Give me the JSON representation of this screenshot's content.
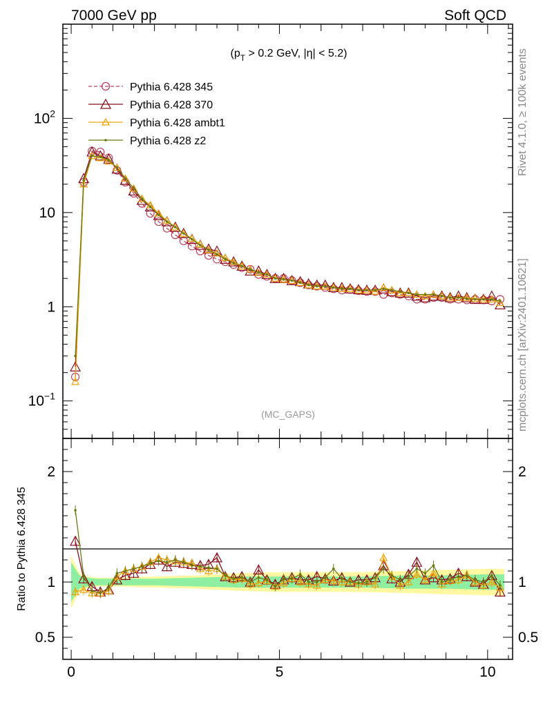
{
  "header": {
    "left": "7000 GeV pp",
    "right": "Soft QCD"
  },
  "side_labels": {
    "rivet": "Rivet 4.1.0, ≥ 100k events",
    "mcplots": "mcplots.cern.ch [arXiv:2401.10621]"
  },
  "colors": {
    "p345": "#c0405a",
    "p370": "#8b0f1e",
    "ambt1": "#f0a30a",
    "z2": "#6b7a10",
    "band_inner": "#8fefa0",
    "band_outer": "#fff8a0"
  },
  "chart_data": [
    {
      "id": "main",
      "type": "line",
      "yscale": "log",
      "title": "(p_T > 0.2 GeV, |η| < 5.2)",
      "title_parts": {
        "open": "(p",
        "sub": "T",
        "rest": " > 0.2 GeV, |η| < 5.2)"
      },
      "annotation": "(MC_GAPS)",
      "xlim": [
        -0.2,
        10.6
      ],
      "ylim": [
        0.04,
        1000
      ],
      "ytick_labels": [
        {
          "value": 0.1,
          "base": "10",
          "exp": "−1"
        },
        {
          "value": 1,
          "text": "1"
        },
        {
          "value": 10,
          "text": "10"
        },
        {
          "value": 100,
          "base": "10",
          "exp": "2"
        }
      ],
      "series": [
        {
          "name": "Pythia 6.428 345",
          "key": "p345",
          "marker": "circle-open",
          "dashed": true,
          "x": [
            0.1,
            0.3,
            0.5,
            0.7,
            0.9,
            1.1,
            1.3,
            1.5,
            1.7,
            1.9,
            2.1,
            2.3,
            2.5,
            2.7,
            2.9,
            3.1,
            3.3,
            3.5,
            3.7,
            3.9,
            4.1,
            4.3,
            4.5,
            4.7,
            4.9,
            5.1,
            5.3,
            5.5,
            5.7,
            5.9,
            6.1,
            6.3,
            6.5,
            6.7,
            6.9,
            7.1,
            7.3,
            7.5,
            7.7,
            7.9,
            8.1,
            8.3,
            8.5,
            8.7,
            8.9,
            9.1,
            9.3,
            9.5,
            9.7,
            9.9,
            10.1,
            10.3
          ],
          "values": [
            0.18,
            21,
            45,
            44,
            38,
            28,
            21,
            16,
            12.5,
            9.8,
            8.0,
            6.8,
            5.8,
            5.0,
            4.4,
            3.9,
            3.5,
            3.2,
            3.0,
            2.8,
            2.6,
            2.5,
            2.2,
            2.1,
            2.0,
            2.0,
            1.9,
            1.8,
            1.7,
            1.65,
            1.6,
            1.55,
            1.5,
            1.52,
            1.48,
            1.45,
            1.45,
            1.35,
            1.4,
            1.35,
            1.3,
            1.2,
            1.2,
            1.25,
            1.25,
            1.2,
            1.2,
            1.18,
            1.2,
            1.18,
            1.15,
            1.2
          ]
        },
        {
          "name": "Pythia 6.428 370",
          "key": "p370",
          "marker": "triangle-open",
          "dashed": false,
          "x": [
            0.1,
            0.3,
            0.5,
            0.7,
            0.9,
            1.1,
            1.3,
            1.5,
            1.7,
            1.9,
            2.1,
            2.3,
            2.5,
            2.7,
            2.9,
            3.1,
            3.3,
            3.5,
            3.7,
            3.9,
            4.1,
            4.3,
            4.5,
            4.7,
            4.9,
            5.1,
            5.3,
            5.5,
            5.7,
            5.9,
            6.1,
            6.3,
            6.5,
            6.7,
            6.9,
            7.1,
            7.3,
            7.5,
            7.7,
            7.9,
            8.1,
            8.3,
            8.5,
            8.7,
            8.9,
            9.1,
            9.3,
            9.5,
            9.7,
            9.9,
            10.1,
            10.3
          ],
          "values": [
            0.23,
            23,
            44,
            40,
            37,
            29,
            22,
            17,
            13.5,
            11.5,
            9.3,
            8.0,
            7.0,
            6.0,
            5.2,
            4.5,
            4.1,
            3.9,
            3.2,
            3.0,
            2.7,
            2.4,
            2.4,
            2.2,
            2.0,
            2.0,
            1.9,
            1.85,
            1.75,
            1.7,
            1.7,
            1.6,
            1.6,
            1.55,
            1.52,
            1.5,
            1.5,
            1.55,
            1.45,
            1.4,
            1.4,
            1.3,
            1.25,
            1.3,
            1.3,
            1.25,
            1.3,
            1.25,
            1.2,
            1.2,
            1.3,
            1.05
          ]
        },
        {
          "name": "Pythia 6.428 ambt1",
          "key": "ambt1",
          "marker": "triangle-small",
          "dashed": false,
          "x": [
            0.1,
            0.3,
            0.5,
            0.7,
            0.9,
            1.1,
            1.3,
            1.5,
            1.7,
            1.9,
            2.1,
            2.3,
            2.5,
            2.7,
            2.9,
            3.1,
            3.3,
            3.5,
            3.7,
            3.9,
            4.1,
            4.3,
            4.5,
            4.7,
            4.9,
            5.1,
            5.3,
            5.5,
            5.7,
            5.9,
            6.1,
            6.3,
            6.5,
            6.7,
            6.9,
            7.1,
            7.3,
            7.5,
            7.7,
            7.9,
            8.1,
            8.3,
            8.5,
            8.7,
            8.9,
            9.1,
            9.3,
            9.5,
            9.7,
            9.9,
            10.1,
            10.3
          ],
          "values": [
            0.16,
            20,
            40,
            38,
            35,
            30,
            23,
            18,
            14,
            12,
            9.8,
            8.2,
            7.0,
            6.0,
            5.3,
            4.6,
            4.0,
            3.7,
            3.3,
            3.0,
            2.7,
            2.5,
            2.3,
            2.2,
            2.0,
            1.95,
            1.9,
            1.8,
            1.7,
            1.65,
            1.65,
            1.6,
            1.55,
            1.55,
            1.5,
            1.5,
            1.45,
            1.6,
            1.5,
            1.4,
            1.4,
            1.35,
            1.3,
            1.35,
            1.3,
            1.25,
            1.25,
            1.25,
            1.22,
            1.2,
            1.2,
            1.1
          ]
        },
        {
          "name": "Pythia 6.428 z2",
          "key": "z2",
          "marker": "dot",
          "dashed": false,
          "x": [
            0.1,
            0.3,
            0.5,
            0.7,
            0.9,
            1.1,
            1.3,
            1.5,
            1.7,
            1.9,
            2.1,
            2.3,
            2.5,
            2.7,
            2.9,
            3.1,
            3.3,
            3.5,
            3.7,
            3.9,
            4.1,
            4.3,
            4.5,
            4.7,
            4.9,
            5.1,
            5.3,
            5.5,
            5.7,
            5.9,
            6.1,
            6.3,
            6.5,
            6.7,
            6.9,
            7.1,
            7.3,
            7.5,
            7.7,
            7.9,
            8.1,
            8.3,
            8.5,
            8.7,
            8.9,
            9.1,
            9.3,
            9.5,
            9.7,
            9.9,
            10.1,
            10.3
          ],
          "values": [
            0.3,
            22,
            40,
            39,
            36,
            30,
            23,
            18,
            14,
            11.5,
            9.5,
            8.0,
            7.0,
            6.0,
            5.2,
            4.5,
            4.0,
            3.6,
            3.2,
            2.9,
            2.7,
            2.5,
            2.3,
            2.2,
            2.0,
            1.95,
            1.9,
            1.8,
            1.7,
            1.65,
            1.65,
            1.6,
            1.55,
            1.55,
            1.5,
            1.5,
            1.5,
            1.55,
            1.5,
            1.45,
            1.4,
            1.35,
            1.35,
            1.35,
            1.3,
            1.25,
            1.25,
            1.22,
            1.2,
            1.2,
            1.2,
            1.15
          ]
        }
      ]
    },
    {
      "id": "ratio",
      "type": "line",
      "yscale": "linear",
      "ylabel": "Ratio to Pythia 6.428 345",
      "xlim": [
        -0.2,
        10.6
      ],
      "ylim": [
        0.3,
        2.3
      ],
      "xtick_labels": [
        "0",
        "5",
        "10"
      ],
      "ytick_labels": [
        "0.5",
        "1",
        "2"
      ],
      "band_x": [
        0.0,
        0.2,
        0.4,
        0.6,
        0.8,
        1.0,
        2.0,
        3.0,
        4.0,
        5.0,
        6.0,
        7.0,
        8.0,
        9.0,
        10.0,
        10.4
      ],
      "band_inner": [
        0.18,
        0.06,
        0.04,
        0.03,
        0.03,
        0.03,
        0.03,
        0.04,
        0.05,
        0.05,
        0.05,
        0.05,
        0.06,
        0.06,
        0.07,
        0.07
      ],
      "band_outer": [
        0.24,
        0.08,
        0.05,
        0.04,
        0.04,
        0.04,
        0.05,
        0.06,
        0.08,
        0.09,
        0.09,
        0.09,
        0.1,
        0.11,
        0.12,
        0.12
      ],
      "series": [
        {
          "name": "Pythia 6.428 370",
          "key": "p370",
          "x": [
            0.1,
            0.3,
            0.5,
            0.7,
            0.9,
            1.1,
            1.3,
            1.5,
            1.7,
            1.9,
            2.1,
            2.3,
            2.5,
            2.7,
            2.9,
            3.1,
            3.3,
            3.5,
            3.7,
            3.9,
            4.1,
            4.3,
            4.5,
            4.7,
            4.9,
            5.1,
            5.3,
            5.5,
            5.7,
            5.9,
            6.1,
            6.3,
            6.5,
            6.7,
            6.9,
            7.1,
            7.3,
            7.5,
            7.7,
            7.9,
            8.1,
            8.3,
            8.5,
            8.7,
            8.9,
            9.1,
            9.3,
            9.5,
            9.7,
            9.9,
            10.1,
            10.3
          ],
          "values": [
            1.37,
            1.03,
            0.96,
            0.91,
            0.93,
            1.02,
            1.06,
            1.08,
            1.12,
            1.16,
            1.2,
            1.14,
            1.18,
            1.17,
            1.16,
            1.15,
            1.16,
            1.22,
            1.05,
            1.04,
            1.05,
            1.0,
            1.11,
            1.02,
            0.98,
            1.02,
            1.04,
            1.02,
            1.02,
            1.05,
            1.03,
            1.01,
            1.04,
            1.0,
            1.02,
            1.02,
            1.04,
            1.15,
            1.03,
            1.0,
            1.07,
            1.18,
            1.02,
            1.04,
            1.02,
            1.03,
            1.08,
            1.05,
            1.0,
            0.98,
            1.06,
            0.91
          ]
        },
        {
          "name": "Pythia 6.428 ambt1",
          "key": "ambt1",
          "x": [
            0.1,
            0.3,
            0.5,
            0.7,
            0.9,
            1.1,
            1.3,
            1.5,
            1.7,
            1.9,
            2.1,
            2.3,
            2.5,
            2.7,
            2.9,
            3.1,
            3.3,
            3.5,
            3.7,
            3.9,
            4.1,
            4.3,
            4.5,
            4.7,
            4.9,
            5.1,
            5.3,
            5.5,
            5.7,
            5.9,
            6.1,
            6.3,
            6.5,
            6.7,
            6.9,
            7.1,
            7.3,
            7.5,
            7.7,
            7.9,
            8.1,
            8.3,
            8.5,
            8.7,
            8.9,
            9.1,
            9.3,
            9.5,
            9.7,
            9.9,
            10.1,
            10.3
          ],
          "values": [
            0.91,
            0.93,
            0.9,
            0.9,
            0.92,
            1.05,
            1.1,
            1.12,
            1.14,
            1.18,
            1.22,
            1.2,
            1.19,
            1.18,
            1.17,
            1.12,
            1.1,
            1.12,
            1.05,
            1.02,
            1.03,
            0.98,
            0.99,
            1.01,
            0.96,
            0.99,
            1.03,
            1.0,
            0.98,
            0.97,
            1.02,
            1.01,
            1.0,
            1.0,
            0.98,
            1.0,
            0.98,
            1.22,
            1.05,
            0.97,
            1.0,
            1.07,
            1.02,
            1.08,
            0.98,
            1.01,
            1.02,
            1.06,
            1.0,
            0.97,
            1.0,
            0.95
          ]
        },
        {
          "name": "Pythia 6.428 z2",
          "key": "z2",
          "x": [
            0.1,
            0.3,
            0.5,
            0.7,
            0.9,
            1.1,
            1.3,
            1.5,
            1.7,
            1.9,
            2.1,
            2.3,
            2.5,
            2.7,
            2.9,
            3.1,
            3.3,
            3.5,
            3.7,
            3.9,
            4.1,
            4.3,
            4.5,
            4.7,
            4.9,
            5.1,
            5.3,
            5.5,
            5.7,
            5.9,
            6.1,
            6.3,
            6.5,
            6.7,
            6.9,
            7.1,
            7.3,
            7.5,
            7.7,
            7.9,
            8.1,
            8.3,
            8.5,
            8.7,
            8.9,
            9.1,
            9.3,
            9.5,
            9.7,
            9.9,
            10.1,
            10.3
          ],
          "values": [
            1.65,
            1.05,
            0.92,
            0.9,
            0.95,
            1.08,
            1.1,
            1.12,
            1.14,
            1.17,
            1.19,
            1.18,
            1.2,
            1.18,
            1.15,
            1.14,
            1.13,
            1.12,
            1.06,
            1.03,
            1.04,
            1.0,
            1.04,
            1.02,
            0.96,
            1.03,
            1.03,
            1.07,
            1.0,
            1.0,
            1.04,
            1.12,
            1.03,
            1.0,
            0.99,
            1.0,
            1.04,
            1.12,
            1.06,
            1.02,
            1.05,
            1.12,
            1.08,
            1.15,
            1.0,
            1.02,
            1.05,
            1.06,
            1.02,
            1.0,
            1.06,
            0.97
          ]
        }
      ]
    }
  ]
}
